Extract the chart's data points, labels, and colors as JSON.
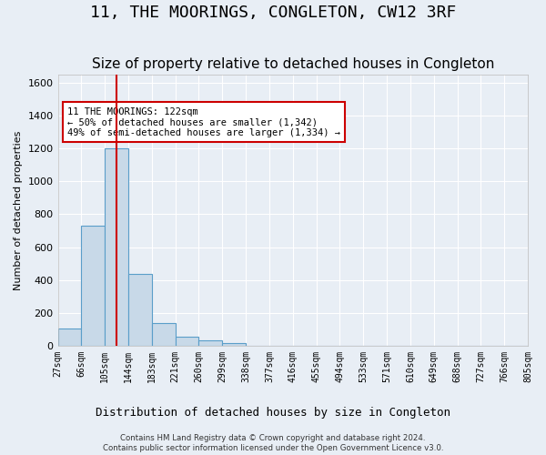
{
  "title": "11, THE MOORINGS, CONGLETON, CW12 3RF",
  "subtitle": "Size of property relative to detached houses in Congleton",
  "xlabel_bottom": "Distribution of detached houses by size in Congleton",
  "ylabel": "Number of detached properties",
  "footer_line1": "Contains HM Land Registry data © Crown copyright and database right 2024.",
  "footer_line2": "Contains public sector information licensed under the Open Government Licence v3.0.",
  "bin_labels": [
    "27sqm",
    "66sqm",
    "105sqm",
    "144sqm",
    "183sqm",
    "221sqm",
    "260sqm",
    "299sqm",
    "338sqm",
    "377sqm",
    "416sqm",
    "455sqm",
    "494sqm",
    "533sqm",
    "571sqm",
    "610sqm",
    "649sqm",
    "688sqm",
    "727sqm",
    "766sqm",
    "805sqm"
  ],
  "bar_values": [
    105,
    730,
    1200,
    435,
    140,
    55,
    30,
    15,
    0,
    0,
    0,
    0,
    0,
    0,
    0,
    0,
    0,
    0,
    0,
    0
  ],
  "bar_color": "#c8d9e8",
  "bar_edge_color": "#5a9ec9",
  "vline_color": "#cc0000",
  "annotation_text": "11 THE MOORINGS: 122sqm\n← 50% of detached houses are smaller (1,342)\n49% of semi-detached houses are larger (1,334) →",
  "annotation_box_color": "#ffffff",
  "annotation_box_edge": "#cc0000",
  "ylim": [
    0,
    1650
  ],
  "yticks": [
    0,
    200,
    400,
    600,
    800,
    1000,
    1200,
    1400,
    1600
  ],
  "bg_color": "#e8eef5",
  "plot_bg_color": "#e8eef5",
  "grid_color": "#ffffff",
  "title_fontsize": 13,
  "subtitle_fontsize": 11
}
